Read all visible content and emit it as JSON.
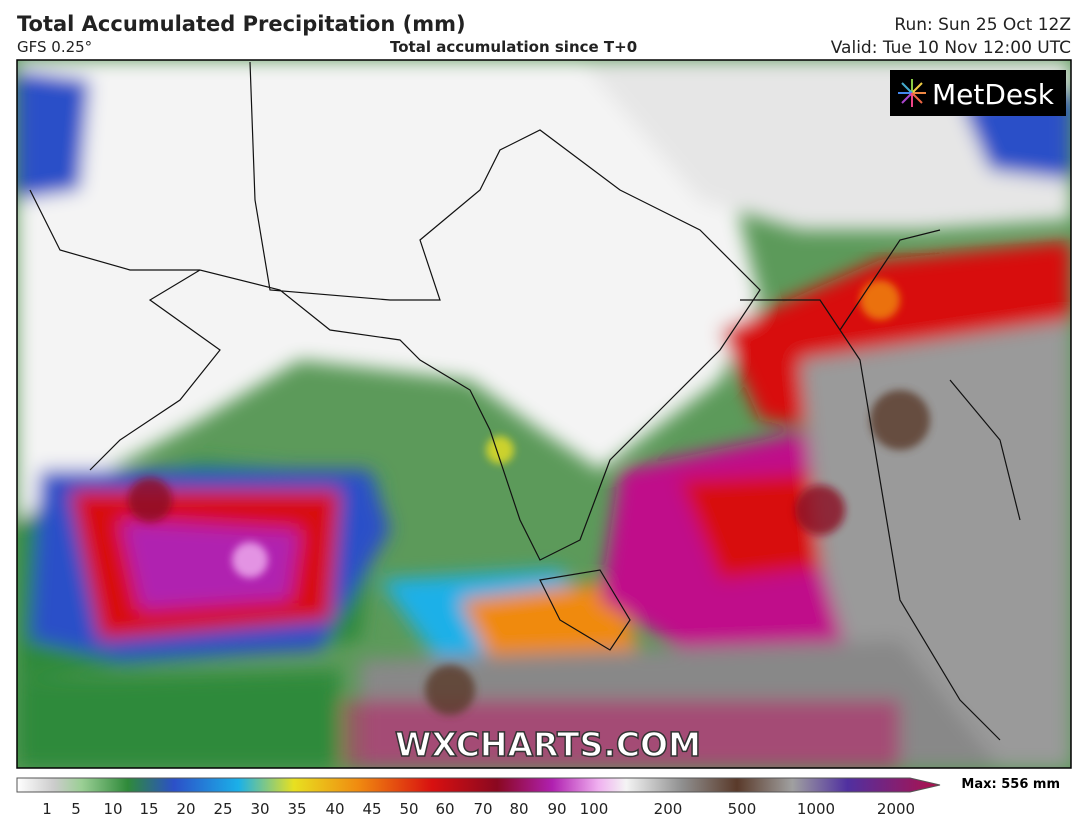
{
  "header": {
    "title": "Total Accumulated Precipitation (mm)",
    "model": "GFS 0.25°",
    "subtitle": "Total accumulation since T+0",
    "run": "Run: Sun 25 Oct 12Z",
    "valid": "Valid: Tue 10 Nov 12:00 UTC"
  },
  "logo": "MetDesk",
  "watermark": "WXCHARTS.COM",
  "legend": {
    "ticks": [
      1,
      5,
      10,
      15,
      20,
      25,
      30,
      35,
      40,
      45,
      50,
      60,
      70,
      80,
      90,
      100,
      200,
      500,
      1000,
      2000
    ],
    "max": "Max: 556 mm"
  }
}
